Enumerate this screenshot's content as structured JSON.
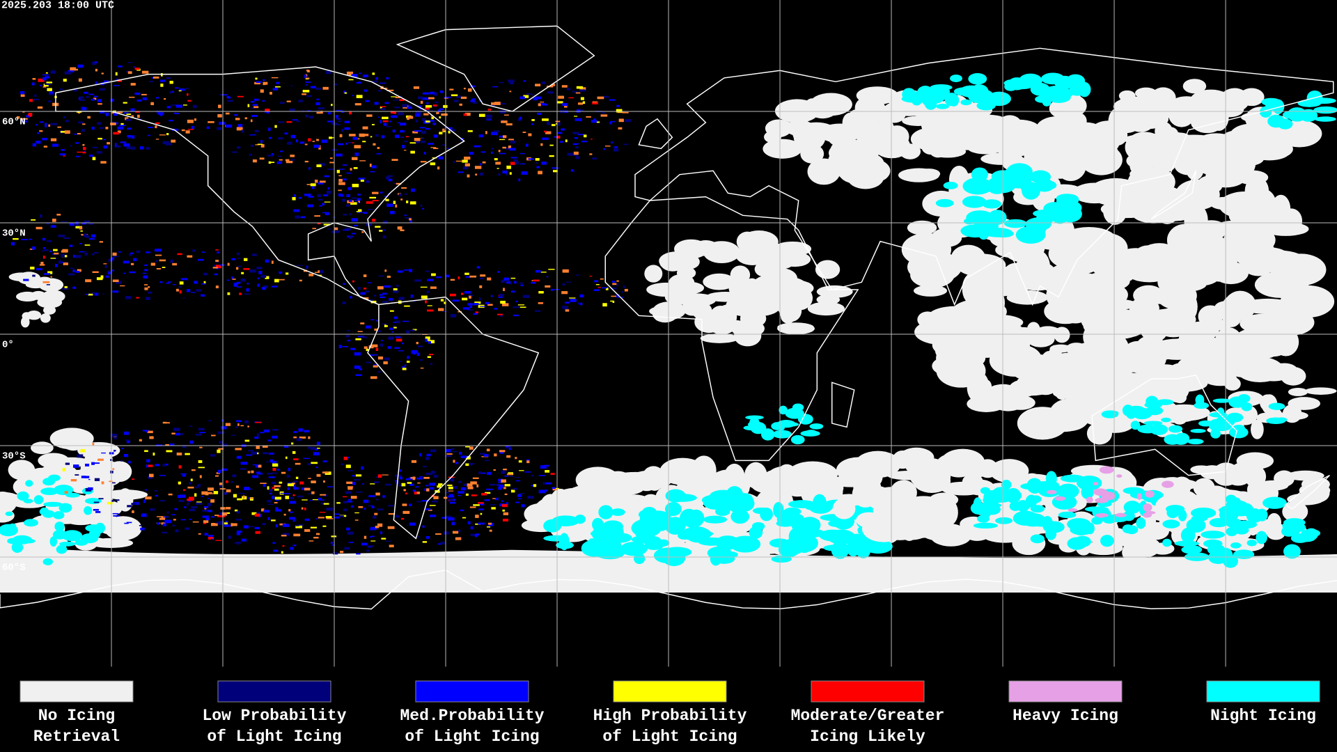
{
  "header": {
    "timestamp": "2025.203 18:00 UTC"
  },
  "map": {
    "latitude_labels": [
      "60°N",
      "30°N",
      "0°",
      "30°S",
      "60°S"
    ]
  },
  "legend": {
    "items": [
      {
        "label_lines": [
          "No Icing",
          "Retrieval"
        ],
        "color": "#f0f0f0"
      },
      {
        "label_lines": [
          "Low Probability",
          "of Light Icing"
        ],
        "color": "#00007a"
      },
      {
        "label_lines": [
          "Med.Probability",
          "of Light Icing"
        ],
        "color": "#0000ff"
      },
      {
        "label_lines": [
          "High Probability",
          "of Light Icing"
        ],
        "color": "#ffff00"
      },
      {
        "label_lines": [
          "Moderate/Greater",
          "Icing Likely"
        ],
        "color": "#ff0000"
      },
      {
        "label_lines": [
          "Heavy Icing"
        ],
        "color": "#e6a0e6"
      },
      {
        "label_lines": [
          "Night Icing"
        ],
        "color": "#00ffff"
      }
    ]
  }
}
